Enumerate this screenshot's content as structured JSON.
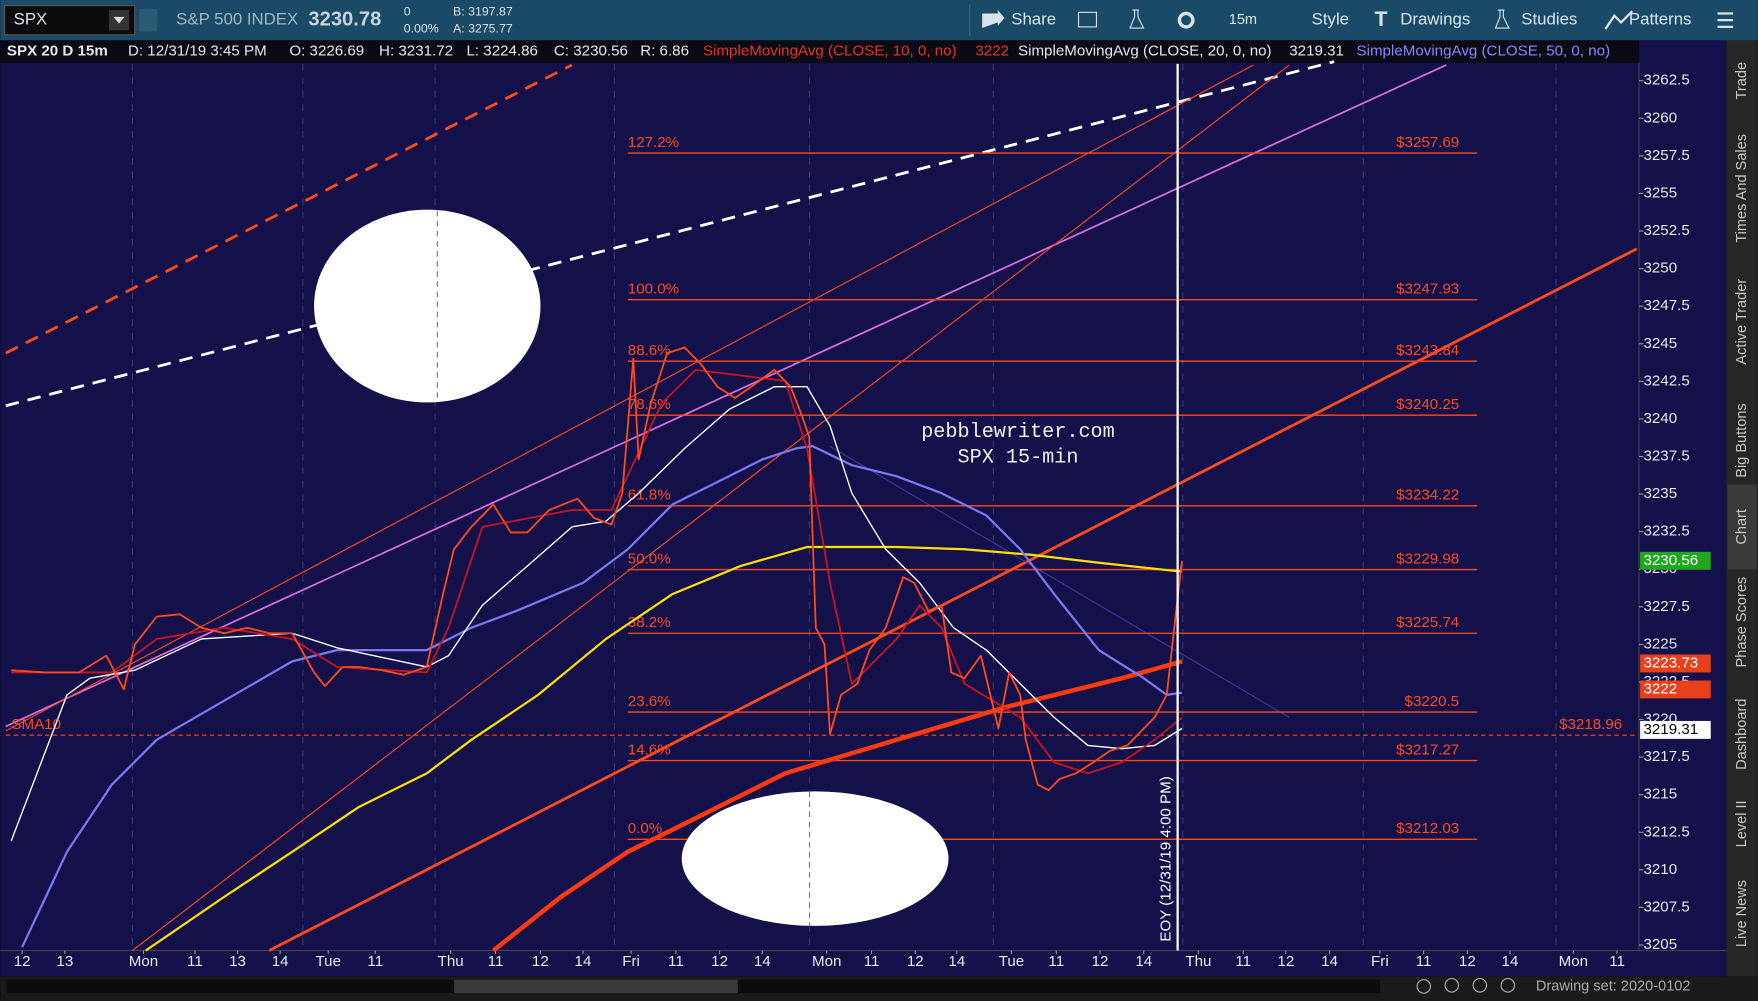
{
  "toolbar": {
    "symbol": "SPX",
    "name": "S&P 500 INDEX",
    "last": "3230.78",
    "change": "0",
    "change_pct": "0.00%",
    "bid": "B: 3197.87",
    "ask": "A: 3275.77",
    "buttons": [
      "Share",
      "15m",
      "Style",
      "Drawings",
      "Studies",
      "Patterns"
    ]
  },
  "header": {
    "chart": "SPX 20 D 15m",
    "date": "D: 12/31/19 3:45 PM",
    "open": "O: 3226.69",
    "high": "H: 3231.72",
    "low": "L: 3224.86",
    "close": "C: 3230.56",
    "range": "R: 6.86",
    "sma10_value": "3222",
    "sma20_value": "3219.31"
  },
  "sidebar": [
    "Trade",
    "Times And Sales",
    "Active Trader",
    "Big Buttons",
    "Chart",
    "Phase Scores",
    "Dashboard",
    "Level II",
    "Live News"
  ],
  "footer": {
    "drawing_set": "Drawing set: 2020-0102"
  },
  "chart_data": {
    "type": "line",
    "xlim": [
      0,
      149.2
    ],
    "ylim": [
      3204.63,
      3263.62
    ],
    "yticks": [
      3205,
      3207.5,
      3210,
      3212.5,
      3215,
      3217.5,
      3220,
      3222.5,
      3225,
      3227.5,
      3230,
      3232.5,
      3235,
      3237.5,
      3240,
      3242.5,
      3245,
      3247.5,
      3250,
      3252.5,
      3255,
      3257.5,
      3260,
      3262.5
    ],
    "xticks": [
      {
        "value": 1.5,
        "label": "12"
      },
      {
        "value": 5.4,
        "label": "13"
      },
      {
        "value": 12.6,
        "label": "Mon"
      },
      {
        "value": 17.3,
        "label": "11"
      },
      {
        "value": 21.2,
        "label": "13"
      },
      {
        "value": 25.1,
        "label": "14"
      },
      {
        "value": 29.5,
        "label": "Tue"
      },
      {
        "value": 33.8,
        "label": "11"
      },
      {
        "value": 40.7,
        "label": "Thu"
      },
      {
        "value": 44.8,
        "label": "11"
      },
      {
        "value": 48.9,
        "label": "12"
      },
      {
        "value": 52.8,
        "label": "14"
      },
      {
        "value": 57.2,
        "label": "Fri"
      },
      {
        "value": 61.3,
        "label": "11"
      },
      {
        "value": 65.3,
        "label": "12"
      },
      {
        "value": 69.2,
        "label": "14"
      },
      {
        "value": 75.1,
        "label": "Mon"
      },
      {
        "value": 79.2,
        "label": "11"
      },
      {
        "value": 83.2,
        "label": "12"
      },
      {
        "value": 87.0,
        "label": "14"
      },
      {
        "value": 92.0,
        "label": "Tue"
      },
      {
        "value": 96.1,
        "label": "11"
      },
      {
        "value": 100.1,
        "label": "12"
      },
      {
        "value": 104.1,
        "label": "14"
      },
      {
        "value": 109.1,
        "label": "Thu"
      },
      {
        "value": 113.2,
        "label": "11"
      },
      {
        "value": 117.1,
        "label": "12"
      },
      {
        "value": 121.1,
        "label": "14"
      },
      {
        "value": 125.7,
        "label": "Fri"
      },
      {
        "value": 129.7,
        "label": "11"
      },
      {
        "value": 133.7,
        "label": "12"
      },
      {
        "value": 137.6,
        "label": "14"
      },
      {
        "value": 143.4,
        "label": "Mon"
      },
      {
        "value": 147.4,
        "label": "11"
      }
    ],
    "series": [
      {
        "color": "#ffe000",
        "width": 2,
        "x": [
          12.8,
          20.0,
          26.2,
          32.3,
          38.5,
          42.6,
          48.7,
          54.9,
          61.0,
          67.2,
          73.3,
          81.5,
          87.7,
          93.8,
          100.0,
          107.6
        ],
        "values": [
          3204.63,
          3208.21,
          3211.2,
          3214.18,
          3216.42,
          3218.65,
          3221.64,
          3225.36,
          3228.35,
          3230.21,
          3231.48,
          3231.48,
          3231.33,
          3230.96,
          3230.43,
          3229.84
        ]
      },
      {
        "color": "#ff3a10",
        "width": 4,
        "x": [
          44.6,
          50.8,
          56.9,
          63.1,
          71.3,
          81.5,
          91.8,
          102.1,
          107.6
        ],
        "values": [
          3204.63,
          3208.21,
          3211.2,
          3213.43,
          3216.42,
          3218.65,
          3220.89,
          3222.75,
          3223.87
        ]
      },
      {
        "name": "SimpleMovingAvg (CLOSE, 50, 0, no)",
        "color": "#7b78f0",
        "width": 2,
        "x": [
          1.5,
          5.6,
          9.7,
          13.8,
          20.0,
          26.2,
          30.3,
          38.5,
          42.6,
          46.7,
          52.8,
          56.9,
          61.0,
          65.1,
          69.2,
          72.3,
          73.8,
          77.4,
          81.5,
          85.6,
          89.7,
          92.8,
          95.9,
          100.0,
          104.1,
          106.2,
          107.6
        ],
        "values": [
          3204.86,
          3211.2,
          3215.67,
          3218.65,
          3221.26,
          3223.87,
          3224.62,
          3224.62,
          3226.11,
          3227.23,
          3229.09,
          3231.33,
          3234.31,
          3235.8,
          3237.3,
          3238.04,
          3238.19,
          3236.92,
          3236.18,
          3235.06,
          3233.57,
          3231.33,
          3228.35,
          3224.62,
          3222.75,
          3221.64,
          3221.78
        ]
      },
      {
        "name": "SimpleMovingAvg (CLOSE, 20, 0, no)",
        "color": "#ffffff",
        "width": 1.2,
        "x": [
          0.5,
          5.6,
          7.7,
          11.8,
          17.9,
          26.2,
          30.3,
          38.5,
          40.5,
          43.6,
          47.7,
          51.8,
          54.9,
          57.9,
          62.1,
          66.2,
          70.3,
          73.3,
          75.4,
          77.4,
          80.5,
          83.6,
          86.7,
          89.7,
          92.8,
          95.9,
          99.0,
          102.1,
          105.1,
          107.6
        ],
        "values": [
          3211.94,
          3221.64,
          3222.75,
          3223.28,
          3225.36,
          3225.74,
          3224.77,
          3223.5,
          3224.25,
          3227.6,
          3230.21,
          3232.82,
          3233.19,
          3235.06,
          3238.04,
          3240.65,
          3242.14,
          3242.14,
          3239.53,
          3235.06,
          3231.33,
          3229.09,
          3226.11,
          3224.62,
          3222.38,
          3220.14,
          3218.28,
          3218.06,
          3218.28,
          3219.4
        ]
      },
      {
        "name": "SimpleMovingAvg (CLOSE, 10, 0, no)",
        "color": "#c8141e",
        "width": 1.6,
        "x": [
          0.5,
          9.7,
          13.8,
          20.0,
          26.2,
          30.3,
          38.5,
          40.5,
          43.6,
          51.8,
          55.4,
          60.0,
          63.1,
          71.3,
          73.3,
          75.4,
          77.4,
          81.5,
          83.6,
          85.6,
          87.7,
          92.8,
          95.9,
          99.0,
          102.1,
          105.1,
          107.6
        ],
        "values": [
          3223.13,
          3223.13,
          3225.36,
          3226.11,
          3225.36,
          3223.5,
          3223.13,
          3226.11,
          3232.82,
          3233.94,
          3233.94,
          3241.02,
          3243.26,
          3242.52,
          3238.04,
          3229.09,
          3222.38,
          3225.36,
          3227.6,
          3226.11,
          3222.38,
          3220.14,
          3217.16,
          3216.42,
          3217.16,
          3218.65,
          3220.14
        ]
      },
      {
        "color": "#ff4a1c",
        "width": 1.6,
        "x": [
          0.5,
          3.6,
          6.7,
          9.2,
          10.8,
          11.8,
          13.8,
          15.9,
          17.9,
          20.0,
          22.1,
          24.1,
          26.2,
          28.2,
          29.2,
          30.8,
          32.3,
          34.4,
          36.4,
          38.5,
          40.0,
          41.0,
          42.6,
          44.6,
          46.2,
          47.7,
          49.7,
          52.3,
          53.8,
          55.4,
          56.4,
          56.9,
          57.4,
          57.9,
          59.0,
          60.5,
          62.1,
          63.6,
          65.1,
          66.7,
          68.2,
          70.3,
          71.8,
          72.8,
          73.5,
          74.1,
          74.9,
          75.4,
          76.4,
          77.9,
          79.0,
          80.5,
          82.1,
          83.1,
          84.4,
          85.6,
          86.5,
          87.7,
          89.2,
          90.8,
          91.8,
          92.8,
          93.3,
          94.4,
          95.4,
          96.4,
          97.9,
          99.5,
          101.0,
          102.6,
          104.1,
          105.1,
          106.2,
          107.0,
          107.6
        ],
        "values": [
          3223.28,
          3223.13,
          3223.13,
          3224.25,
          3222.01,
          3224.99,
          3226.85,
          3227.0,
          3226.11,
          3225.74,
          3226.11,
          3225.74,
          3225.74,
          3223.13,
          3222.23,
          3223.5,
          3223.5,
          3223.28,
          3222.98,
          3223.5,
          3228.35,
          3231.33,
          3232.82,
          3234.31,
          3232.45,
          3232.45,
          3233.94,
          3234.69,
          3233.42,
          3232.97,
          3235.06,
          3239.53,
          3244.01,
          3237.3,
          3241.02,
          3244.38,
          3244.75,
          3243.63,
          3242.14,
          3241.4,
          3242.14,
          3243.26,
          3242.14,
          3240.28,
          3238.79,
          3226.11,
          3224.99,
          3219.03,
          3221.64,
          3222.38,
          3224.62,
          3226.11,
          3229.47,
          3229.09,
          3227.23,
          3227.6,
          3223.13,
          3222.75,
          3224.25,
          3219.4,
          3223.13,
          3221.64,
          3218.65,
          3215.67,
          3215.3,
          3216.04,
          3216.42,
          3217.16,
          3217.91,
          3218.28,
          3219.4,
          3220.14,
          3221.64,
          3226.85,
          3230.56
        ]
      }
    ],
    "fib_x": [
      56.9,
      134.6
    ],
    "fib_color": "#ff4a1c",
    "fib": [
      {
        "label": "127.2%",
        "value": 3257.69,
        "value_label": "$3257.69"
      },
      {
        "label": "100.0%",
        "value": 3247.93,
        "value_label": "$3247.93"
      },
      {
        "label": "88.6%",
        "value": 3243.84,
        "value_label": "$3243.84"
      },
      {
        "label": "78.6%",
        "value": 3240.25,
        "value_label": "$3240.25"
      },
      {
        "label": "61.8%",
        "value": 3234.22,
        "value_label": "$3234.22"
      },
      {
        "label": "50.0%",
        "value": 3229.98,
        "value_label": "$3229.98"
      },
      {
        "label": "38.2%",
        "value": 3225.74,
        "value_label": "$3225.74"
      },
      {
        "label": "23.6%",
        "value": 3220.5,
        "value_label": "$3220.5"
      },
      {
        "label": "14.6%",
        "value": 3217.27,
        "value_label": "$3217.27"
      },
      {
        "label": "0.0%",
        "value": 3212.03,
        "value_label": "$3212.03"
      }
    ],
    "level": {
      "label": "SMA10",
      "value": 3218.96,
      "value_label": "$3218.96"
    },
    "price_tags": [
      {
        "value": 3230.56,
        "color": "#1fa81f",
        "text_color": "#ffffff"
      },
      {
        "value": 3223.73,
        "color": "#e8401c",
        "text_color": "#ffffff"
      },
      {
        "value": 3222,
        "color": "#e8401c",
        "text_color": "#ffffff"
      },
      {
        "value": 3219.31,
        "color": "#ffffff",
        "text_color": "#000000"
      }
    ],
    "marker": {
      "x": 107.2,
      "label": "EOY (12/31/19 4:00 PM)"
    },
    "watermark": [
      "pebblewriter.com",
      "SPX 15-min"
    ]
  }
}
